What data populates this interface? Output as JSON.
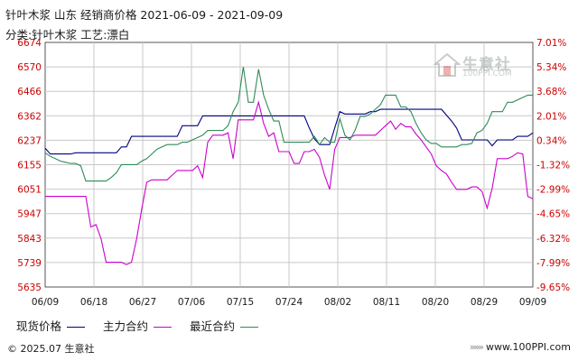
{
  "header": {
    "title": "针叶木浆 山东 经销商价格 2021-06-09 - 2021-09-09",
    "subtitle": "分类:针叶木浆 工艺:漂白"
  },
  "watermark": {
    "cn": "生意社",
    "en": "100PPI.COM"
  },
  "footer": {
    "left": "© 2025.07 生意社",
    "right": "www.100PPI.com"
  },
  "colors": {
    "spot": "#000080",
    "main": "#cc00cc",
    "recent": "#2e8b57",
    "grid": "#c8c8c8",
    "axis": "#555555",
    "right_axis": "#cc0000"
  },
  "chart_data": {
    "type": "line",
    "x_tick_labels": [
      "06/09",
      "06/18",
      "06/27",
      "07/06",
      "07/15",
      "07/24",
      "08/02",
      "08/11",
      "08/20",
      "08/29",
      "09/09"
    ],
    "y_left_ticks": [
      "6674",
      "6570",
      "6466",
      "6362",
      "6237",
      "6155",
      "6051",
      "5947",
      "5843",
      "5739",
      "5635"
    ],
    "y_right_ticks": [
      "7.01%",
      "5.34%",
      "3.68%",
      "2.01%",
      "0.34%",
      "-1.32%",
      "-2.99%",
      "-4.65%",
      "-6.32%",
      "-7.99%",
      "-9.65%"
    ],
    "ylim": [
      5635,
      6674
    ],
    "legend": [
      "现货价格",
      "主力合约",
      "最近合约"
    ],
    "series": [
      {
        "name": "现货价格",
        "values": [
          6225,
          6200,
          6200,
          6200,
          6200,
          6200,
          6205,
          6205,
          6205,
          6205,
          6205,
          6205,
          6205,
          6205,
          6205,
          6230,
          6230,
          6275,
          6275,
          6275,
          6275,
          6275,
          6275,
          6275,
          6275,
          6275,
          6275,
          6320,
          6320,
          6320,
          6320,
          6362,
          6362,
          6362,
          6362,
          6362,
          6362,
          6362,
          6362,
          6362,
          6362,
          6362,
          6362,
          6362,
          6362,
          6362,
          6362,
          6362,
          6362,
          6362,
          6362,
          6362,
          6310,
          6265,
          6240,
          6240,
          6240,
          6310,
          6380,
          6370,
          6370,
          6370,
          6370,
          6370,
          6380,
          6380,
          6390,
          6390,
          6390,
          6390,
          6390,
          6390,
          6390,
          6390,
          6390,
          6390,
          6390,
          6390,
          6390,
          6365,
          6340,
          6310,
          6260,
          6260,
          6260,
          6260,
          6260,
          6260,
          6235,
          6260,
          6260,
          6260,
          6260,
          6275,
          6275,
          6275,
          6290
        ]
      },
      {
        "name": "主力合约",
        "values": [
          6020,
          6020,
          6020,
          6020,
          6020,
          6020,
          6020,
          6020,
          6020,
          5890,
          5900,
          5840,
          5740,
          5740,
          5740,
          5740,
          5730,
          5740,
          5840,
          5965,
          6080,
          6090,
          6090,
          6090,
          6090,
          6110,
          6130,
          6130,
          6130,
          6130,
          6150,
          6100,
          6250,
          6280,
          6280,
          6280,
          6290,
          6180,
          6345,
          6345,
          6345,
          6345,
          6420,
          6330,
          6275,
          6290,
          6210,
          6210,
          6210,
          6160,
          6160,
          6210,
          6210,
          6220,
          6185,
          6110,
          6050,
          6220,
          6270,
          6270,
          6270,
          6280,
          6280,
          6280,
          6280,
          6280,
          6300,
          6320,
          6340,
          6305,
          6330,
          6315,
          6315,
          6285,
          6260,
          6230,
          6200,
          6150,
          6130,
          6115,
          6080,
          6050,
          6050,
          6050,
          6060,
          6060,
          6040,
          5970,
          6055,
          6180,
          6180,
          6180,
          6190,
          6205,
          6200,
          6020,
          6010
        ]
      },
      {
        "name": "最近合约",
        "values": [
          6205,
          6190,
          6180,
          6170,
          6165,
          6160,
          6160,
          6150,
          6085,
          6085,
          6085,
          6085,
          6085,
          6100,
          6120,
          6155,
          6155,
          6155,
          6155,
          6170,
          6180,
          6200,
          6220,
          6230,
          6240,
          6240,
          6240,
          6250,
          6250,
          6260,
          6270,
          6280,
          6300,
          6300,
          6300,
          6300,
          6320,
          6380,
          6420,
          6570,
          6420,
          6420,
          6560,
          6450,
          6390,
          6340,
          6340,
          6250,
          6250,
          6250,
          6250,
          6250,
          6250,
          6275,
          6240,
          6270,
          6250,
          6250,
          6350,
          6280,
          6260,
          6300,
          6360,
          6360,
          6370,
          6390,
          6410,
          6450,
          6450,
          6450,
          6400,
          6400,
          6380,
          6330,
          6290,
          6260,
          6245,
          6245,
          6230,
          6230,
          6230,
          6230,
          6240,
          6240,
          6245,
          6290,
          6300,
          6330,
          6380,
          6380,
          6380,
          6420,
          6420,
          6430,
          6440,
          6450,
          6450
        ]
      }
    ]
  }
}
